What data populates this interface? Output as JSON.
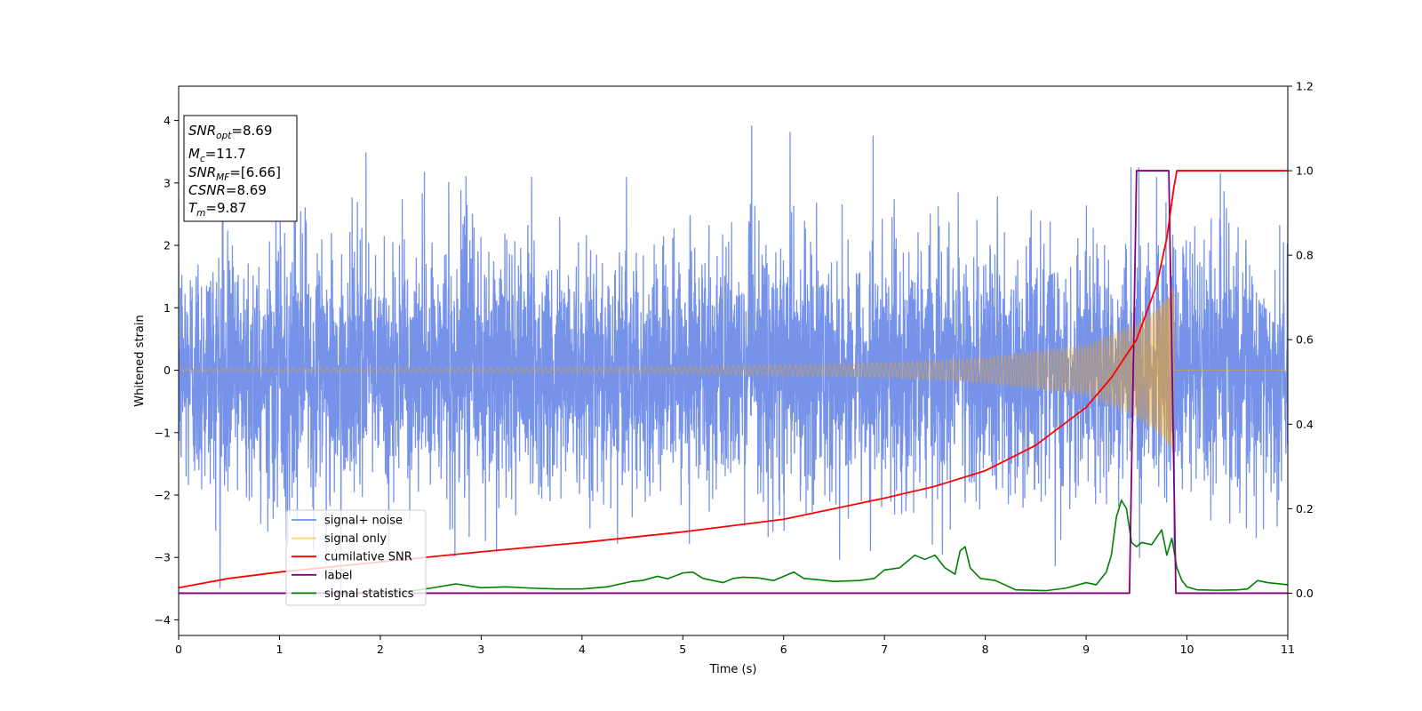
{
  "chart_data": {
    "type": "line",
    "xlabel": "Time (s)",
    "ylabel": "Whitened strain",
    "xlim": [
      0,
      11
    ],
    "ylim_left": [
      -4.25,
      4.55
    ],
    "ylim_right": [
      -0.1,
      1.2
    ],
    "x_ticks": [
      0,
      1,
      2,
      3,
      4,
      5,
      6,
      7,
      8,
      9,
      10,
      11
    ],
    "y_ticks_left": [
      -4,
      -3,
      -2,
      -1,
      0,
      1,
      2,
      3,
      4
    ],
    "y_ticks_right": [
      0.0,
      0.2,
      0.4,
      0.6,
      0.8,
      1.0,
      1.2
    ],
    "y_tick_labels_left": [
      "−4",
      "−3",
      "−2",
      "−1",
      "0",
      "1",
      "2",
      "3",
      "4"
    ],
    "y_tick_labels_right": [
      "0.0",
      "0.2",
      "0.4",
      "0.6",
      "0.8",
      "1.0",
      "1.2"
    ],
    "legend_position": "lower-left",
    "grid": false,
    "annotation": {
      "lines": [
        {
          "sym": "SNR",
          "sub": "opt",
          "val": "=8.69"
        },
        {
          "sym": "M",
          "sub": "c",
          "val": "=11.7"
        },
        {
          "sym": "SNR",
          "sub": "MF",
          "val": "=[6.66]"
        },
        {
          "sym": "CSNR",
          "sub": "",
          "val": "=8.69"
        },
        {
          "sym": "T",
          "sub": "m",
          "val": "=9.87"
        }
      ]
    },
    "series": [
      {
        "name": "signal+ noise",
        "axis": "left",
        "color": "#4169e1",
        "description_only": "noise band",
        "noise_sigma": 1.0,
        "noise_range": [
          -3.85,
          4.2
        ]
      },
      {
        "name": "signal only",
        "axis": "left",
        "color": "#ffa500",
        "chirp_end": 9.87,
        "envelope": [
          [
            0,
            0.03
          ],
          [
            3,
            0.04
          ],
          [
            5,
            0.06
          ],
          [
            7,
            0.12
          ],
          [
            8,
            0.2
          ],
          [
            9,
            0.4
          ],
          [
            9.5,
            0.75
          ],
          [
            9.75,
            1.05
          ],
          [
            9.87,
            1.35
          ]
        ]
      },
      {
        "name": "cumilative SNR",
        "axis": "right",
        "color": "#ff0000",
        "x": [
          0,
          0.5,
          1,
          2,
          3,
          4,
          5,
          6,
          7,
          7.5,
          8,
          8.5,
          9,
          9.25,
          9.5,
          9.7,
          9.8,
          9.87,
          9.9,
          11
        ],
        "values": [
          0.013,
          0.035,
          0.05,
          0.074,
          0.098,
          0.12,
          0.145,
          0.175,
          0.225,
          0.253,
          0.29,
          0.35,
          0.44,
          0.51,
          0.6,
          0.73,
          0.84,
          0.96,
          1.0,
          1.0
        ]
      },
      {
        "name": "label",
        "axis": "right",
        "color": "#800080",
        "x": [
          0,
          9.43,
          9.5,
          9.82,
          9.89,
          11
        ],
        "values": [
          0,
          0,
          1,
          1,
          0,
          0
        ]
      },
      {
        "name": "signal statistics",
        "axis": "right",
        "color": "#008000",
        "x": [
          0,
          0.5,
          1,
          1.5,
          2,
          2.3,
          2.5,
          2.75,
          3,
          3.25,
          3.5,
          3.75,
          4,
          4.25,
          4.5,
          4.6,
          4.75,
          4.85,
          5,
          5.1,
          5.2,
          5.3,
          5.4,
          5.5,
          5.6,
          5.75,
          5.9,
          6.1,
          6.2,
          6.3,
          6.5,
          6.75,
          6.9,
          7,
          7.15,
          7.25,
          7.3,
          7.4,
          7.5,
          7.6,
          7.7,
          7.75,
          7.8,
          7.85,
          7.95,
          8.1,
          8.3,
          8.6,
          8.8,
          9,
          9.1,
          9.2,
          9.25,
          9.3,
          9.35,
          9.4,
          9.45,
          9.5,
          9.55,
          9.65,
          9.75,
          9.8,
          9.85,
          9.9,
          9.95,
          10,
          10.1,
          10.3,
          10.5,
          10.6,
          10.7,
          10.8,
          11
        ],
        "values": [
          0.0,
          0.0,
          0.0,
          0.001,
          0.002,
          0.005,
          0.012,
          0.022,
          0.013,
          0.015,
          0.012,
          0.01,
          0.01,
          0.015,
          0.028,
          0.03,
          0.04,
          0.034,
          0.048,
          0.05,
          0.035,
          0.03,
          0.025,
          0.035,
          0.038,
          0.036,
          0.03,
          0.05,
          0.035,
          0.033,
          0.028,
          0.03,
          0.035,
          0.055,
          0.06,
          0.08,
          0.09,
          0.08,
          0.09,
          0.06,
          0.045,
          0.1,
          0.11,
          0.06,
          0.035,
          0.03,
          0.008,
          0.006,
          0.012,
          0.025,
          0.02,
          0.05,
          0.09,
          0.18,
          0.22,
          0.2,
          0.12,
          0.11,
          0.12,
          0.115,
          0.15,
          0.09,
          0.13,
          0.06,
          0.03,
          0.015,
          0.008,
          0.007,
          0.008,
          0.01,
          0.03,
          0.025,
          0.02
        ]
      }
    ]
  }
}
